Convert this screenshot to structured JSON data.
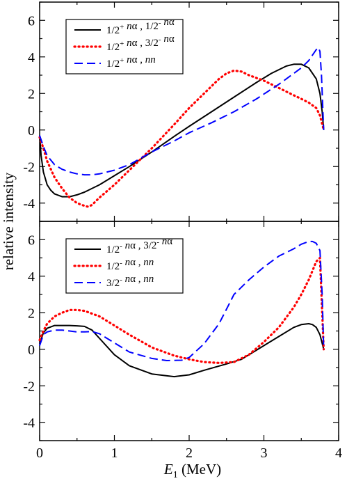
{
  "chart_data": {
    "type": "line",
    "xlabel": "E_1 (MeV)",
    "xlabel_parts": {
      "symbol": "E",
      "subscript": "1",
      "unit": " (MeV)"
    },
    "ylabel": "relative intensity",
    "x_ticks": [
      "0",
      "1",
      "2",
      "3",
      "4"
    ],
    "xlim": [
      0,
      4
    ],
    "grid": false,
    "panels": [
      {
        "name": "top",
        "ylim": [
          -5,
          7
        ],
        "y_ticks": [
          "-4",
          "-2",
          "0",
          "2",
          "4",
          "6"
        ],
        "legend_placement": "top-left",
        "series": [
          {
            "name": "1/2+ nα , 1/2- nα",
            "legend": [
              [
                "1/2",
                "n"
              ],
              [
                "+",
                "sup"
              ],
              [
                " ",
                "n"
              ],
              [
                "n",
                "i"
              ],
              [
                "α",
                "n"
              ],
              [
                " , 1/2",
                "n"
              ],
              [
                "-",
                "sup"
              ],
              [
                " ",
                "n"
              ],
              [
                "n",
                "i"
              ],
              [
                "α",
                "n"
              ]
            ],
            "color": "#000000",
            "dash": "solid",
            "x": [
              0,
              0.02,
              0.05,
              0.1,
              0.15,
              0.2,
              0.3,
              0.4,
              0.5,
              0.6,
              0.8,
              1.0,
              1.2,
              1.5,
              1.8,
              2.0,
              2.3,
              2.6,
              2.9,
              3.1,
              3.3,
              3.4,
              3.5,
              3.6,
              3.7,
              3.75,
              3.78,
              3.8
            ],
            "y": [
              -0.3,
              -1.4,
              -2.3,
              -3.0,
              -3.3,
              -3.5,
              -3.65,
              -3.65,
              -3.55,
              -3.4,
              -3.0,
              -2.5,
              -2.0,
              -1.2,
              -0.35,
              0.2,
              1.0,
              1.8,
              2.6,
              3.1,
              3.5,
              3.6,
              3.6,
              3.4,
              2.8,
              2.0,
              1.0,
              0.0
            ]
          },
          {
            "name": "1/2+ nα , 3/2- nα",
            "legend": [
              [
                "1/2",
                "n"
              ],
              [
                "+",
                "sup"
              ],
              [
                " ",
                "n"
              ],
              [
                "n",
                "i"
              ],
              [
                "α",
                "n"
              ],
              [
                " , 3/2",
                "n"
              ],
              [
                "-",
                "sup"
              ],
              [
                " ",
                "n"
              ],
              [
                "n",
                "i"
              ],
              [
                "α",
                "n"
              ]
            ],
            "color": "#ff0000",
            "dash": "dotted",
            "x": [
              0,
              0.05,
              0.1,
              0.2,
              0.3,
              0.4,
              0.5,
              0.6,
              0.65,
              0.7,
              0.8,
              1.0,
              1.2,
              1.5,
              1.8,
              2.0,
              2.2,
              2.4,
              2.5,
              2.6,
              2.7,
              2.8,
              3.0,
              3.2,
              3.4,
              3.5,
              3.6,
              3.7,
              3.75,
              3.8
            ],
            "y": [
              -0.4,
              -1.0,
              -1.7,
              -2.6,
              -3.2,
              -3.7,
              -4.0,
              -4.15,
              -4.2,
              -4.1,
              -3.7,
              -3.0,
              -2.2,
              -1.0,
              0.3,
              1.2,
              2.0,
              2.8,
              3.1,
              3.25,
              3.2,
              3.0,
              2.7,
              2.3,
              1.9,
              1.7,
              1.5,
              1.2,
              0.8,
              0.0
            ]
          },
          {
            "name": "1/2+ nα , nn",
            "legend": [
              [
                "1/2",
                "n"
              ],
              [
                "+",
                "sup"
              ],
              [
                " ",
                "n"
              ],
              [
                "n",
                "i"
              ],
              [
                "α",
                "n"
              ],
              [
                " , ",
                "n"
              ],
              [
                "nn",
                "i"
              ]
            ],
            "color": "#0000ff",
            "dash": "dashed",
            "x": [
              0,
              0.05,
              0.1,
              0.2,
              0.3,
              0.4,
              0.5,
              0.6,
              0.7,
              0.8,
              1.0,
              1.2,
              1.5,
              1.8,
              2.0,
              2.3,
              2.6,
              2.9,
              3.2,
              3.4,
              3.5,
              3.6,
              3.65,
              3.7,
              3.73,
              3.75,
              3.77,
              3.79,
              3.8
            ],
            "y": [
              -0.3,
              -0.9,
              -1.4,
              -1.9,
              -2.15,
              -2.3,
              -2.4,
              -2.45,
              -2.45,
              -2.4,
              -2.2,
              -1.9,
              -1.2,
              -0.6,
              -0.15,
              0.4,
              1.0,
              1.7,
              2.5,
              3.1,
              3.4,
              3.8,
              4.1,
              4.4,
              4.5,
              4.3,
              3.0,
              1.0,
              0.0
            ]
          }
        ]
      },
      {
        "name": "bottom",
        "ylim": [
          -5,
          7
        ],
        "y_ticks": [
          "-4",
          "-2",
          "0",
          "2",
          "4",
          "6"
        ],
        "legend_placement": "top-left",
        "series": [
          {
            "name": "1/2- nα , 3/2- nα",
            "legend": [
              [
                "1/2",
                "n"
              ],
              [
                "-",
                "sup"
              ],
              [
                " ",
                "n"
              ],
              [
                "n",
                "i"
              ],
              [
                "α",
                "n"
              ],
              [
                " , 3/2",
                "n"
              ],
              [
                "-",
                "sup"
              ],
              [
                " ",
                "n"
              ],
              [
                "n",
                "i"
              ],
              [
                "α",
                "n"
              ]
            ],
            "color": "#000000",
            "dash": "solid",
            "x": [
              0,
              0.05,
              0.1,
              0.2,
              0.3,
              0.4,
              0.5,
              0.6,
              0.7,
              0.8,
              1.0,
              1.2,
              1.5,
              1.8,
              2.0,
              2.2,
              2.5,
              2.7,
              3.0,
              3.2,
              3.4,
              3.5,
              3.6,
              3.65,
              3.7,
              3.75,
              3.8
            ],
            "y": [
              0.3,
              0.9,
              1.15,
              1.3,
              1.3,
              1.3,
              1.28,
              1.25,
              1.05,
              0.6,
              -0.3,
              -0.9,
              -1.35,
              -1.5,
              -1.4,
              -1.15,
              -0.8,
              -0.55,
              0.2,
              0.7,
              1.2,
              1.35,
              1.4,
              1.35,
              1.2,
              0.8,
              0.0
            ]
          },
          {
            "name": "1/2- nα , nn",
            "legend": [
              [
                "1/2",
                "n"
              ],
              [
                "-",
                "sup"
              ],
              [
                " ",
                "n"
              ],
              [
                "n",
                "i"
              ],
              [
                "α",
                "n"
              ],
              [
                " , ",
                "n"
              ],
              [
                "nn",
                "i"
              ]
            ],
            "color": "#ff0000",
            "dash": "dotted",
            "x": [
              0,
              0.05,
              0.1,
              0.2,
              0.3,
              0.4,
              0.5,
              0.6,
              0.8,
              1.0,
              1.2,
              1.5,
              1.8,
              2.0,
              2.2,
              2.4,
              2.6,
              2.8,
              3.0,
              3.2,
              3.4,
              3.5,
              3.6,
              3.7,
              3.75,
              3.8
            ],
            "y": [
              0.5,
              1.0,
              1.4,
              1.8,
              2.0,
              2.15,
              2.15,
              2.1,
              1.8,
              1.3,
              0.8,
              0.1,
              -0.35,
              -0.55,
              -0.7,
              -0.75,
              -0.7,
              -0.3,
              0.4,
              1.2,
              2.3,
              3.0,
              3.8,
              4.8,
              5.0,
              0.0
            ]
          },
          {
            "name": "3/2- nα , nn",
            "legend": [
              [
                "3/2",
                "n"
              ],
              [
                "-",
                "sup"
              ],
              [
                " ",
                "n"
              ],
              [
                "n",
                "i"
              ],
              [
                "α",
                "n"
              ],
              [
                " , ",
                "n"
              ],
              [
                "nn",
                "i"
              ]
            ],
            "color": "#0000ff",
            "dash": "dashed",
            "x": [
              0,
              0.05,
              0.1,
              0.2,
              0.3,
              0.4,
              0.5,
              0.6,
              0.7,
              0.8,
              1.0,
              1.2,
              1.5,
              1.7,
              1.9,
              2.0,
              2.2,
              2.4,
              2.5,
              2.6,
              2.8,
              3.0,
              3.2,
              3.4,
              3.5,
              3.6,
              3.65,
              3.7,
              3.75,
              3.78,
              3.8
            ],
            "y": [
              0.2,
              0.8,
              0.95,
              1.05,
              1.05,
              1.0,
              0.95,
              0.95,
              0.97,
              0.85,
              0.35,
              -0.15,
              -0.5,
              -0.62,
              -0.6,
              -0.45,
              0.3,
              1.4,
              2.2,
              3.0,
              3.8,
              4.5,
              5.1,
              5.5,
              5.75,
              5.9,
              5.9,
              5.8,
              5.4,
              3.0,
              0.0
            ]
          }
        ]
      }
    ]
  }
}
